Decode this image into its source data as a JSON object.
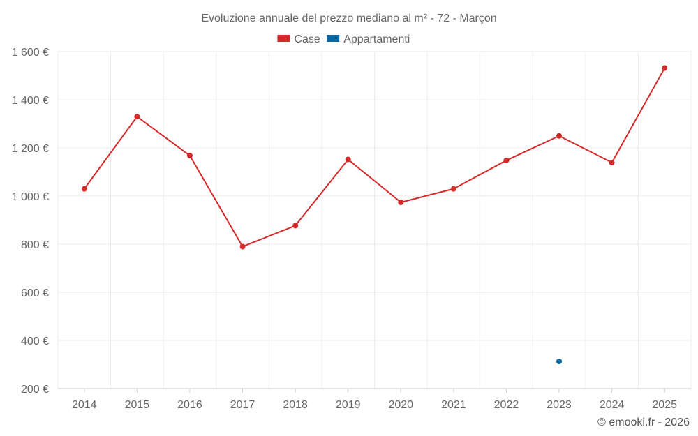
{
  "chart_data": {
    "type": "line",
    "title": "Evoluzione annuale del prezzo mediano al m² - 72 - Marçon",
    "categories": [
      "2014",
      "2015",
      "2016",
      "2017",
      "2018",
      "2019",
      "2020",
      "2021",
      "2022",
      "2023",
      "2024",
      "2025"
    ],
    "series": [
      {
        "name": "Case",
        "color": "#d42a2a",
        "values": [
          1030,
          1330,
          1168,
          790,
          877,
          1152,
          974,
          1030,
          1148,
          1250,
          1139,
          1532
        ]
      },
      {
        "name": "Appartamenti",
        "color": "#0b66a0",
        "values": [
          null,
          null,
          null,
          null,
          null,
          null,
          null,
          null,
          null,
          313,
          null,
          null
        ]
      }
    ],
    "yticks": [
      200,
      400,
      600,
      800,
      1000,
      1200,
      1400,
      1600
    ],
    "ytick_labels": [
      "200 €",
      "400 €",
      "600 €",
      "800 €",
      "1 000 €",
      "1 200 €",
      "1 400 €",
      "1 600 €"
    ],
    "ylim": [
      200,
      1600
    ],
    "xlabel": "",
    "ylabel": "",
    "grid": true,
    "legend_position": "top-center"
  },
  "credit": "© emooki.fr - 2026"
}
